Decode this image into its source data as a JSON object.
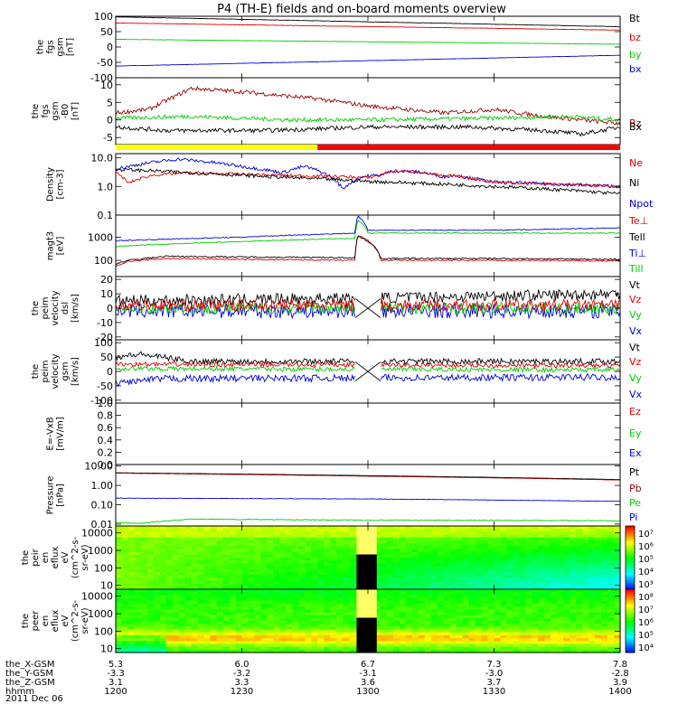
{
  "title": "P4 (TH-E) fields and on-board moments overview",
  "date_label": "2011 Dec 06",
  "colors": {
    "black": "#000000",
    "red": "#e00000",
    "green": "#00cc00",
    "blue": "#0000dd",
    "darkred": "#990000",
    "yellow": "#ffff00"
  },
  "bar_colors": [
    "#ffff00",
    "#ff0000"
  ],
  "chart_data": [
    {
      "type": "line",
      "ylabel": [
        "the",
        "fgs",
        "gsm",
        "[nT]"
      ],
      "ylim": [
        -100,
        100
      ],
      "yticks": [
        {
          "v": 100,
          "t": "100"
        },
        {
          "v": 50,
          "t": "50"
        },
        {
          "v": 0,
          "t": "0"
        },
        {
          "v": -50,
          "t": "-50"
        },
        {
          "v": -100,
          "t": "-100"
        }
      ],
      "legend": [
        "Bt",
        "bz",
        "by",
        "bx"
      ],
      "series": [
        {
          "name": "Bt",
          "color": "#000000",
          "x": [
            12.0,
            14.0
          ],
          "y": [
            98,
            66
          ],
          "noise": 0.5
        },
        {
          "name": "bz",
          "color": "#e00000",
          "x": [
            12.0,
            14.0
          ],
          "y": [
            78,
            55
          ],
          "noise": 0.5
        },
        {
          "name": "by",
          "color": "#00cc00",
          "x": [
            12.0,
            14.0
          ],
          "y": [
            25,
            9
          ],
          "noise": 0.5
        },
        {
          "name": "bx",
          "color": "#0000dd",
          "x": [
            12.0,
            14.0
          ],
          "y": [
            -62,
            -27
          ],
          "noise": 0.5
        }
      ]
    },
    {
      "type": "line",
      "ylabel": [
        "the",
        "fgs",
        "gsm",
        "-B0",
        "[nT]"
      ],
      "ylim": [
        -7,
        12
      ],
      "yticks": [
        {
          "v": 10,
          "t": "10"
        },
        {
          "v": 5,
          "t": "5"
        },
        {
          "v": 0,
          "t": "0"
        },
        {
          "v": -5,
          "t": "-5"
        }
      ],
      "legend": [
        "Bz",
        "Bx"
      ],
      "series": [
        {
          "name": "Bz",
          "color": "#990000",
          "x": [
            12.0,
            12.13,
            12.3,
            12.5,
            12.8,
            13.0,
            13.3,
            13.5,
            13.7,
            13.85,
            14.0
          ],
          "y": [
            2,
            3,
            9,
            8,
            6,
            4,
            2,
            3,
            1,
            0,
            -1
          ],
          "noise": 0.6
        },
        {
          "name": "By",
          "color": "#00cc00",
          "x": [
            12.0,
            12.3,
            12.7,
            13.0,
            13.5,
            13.8,
            14.0
          ],
          "y": [
            0.5,
            1,
            0,
            0,
            0.5,
            1,
            0
          ],
          "noise": 0.6
        },
        {
          "name": "Bx",
          "color": "#000000",
          "x": [
            12.0,
            12.2,
            12.6,
            13.0,
            13.4,
            13.7,
            13.85,
            14.0
          ],
          "y": [
            -2,
            -3,
            -3,
            -2,
            -2,
            -3,
            -4,
            -2
          ],
          "noise": 0.6
        }
      ]
    },
    {
      "type": "line",
      "log": true,
      "ylabel": [
        "Density",
        "[cm-3]"
      ],
      "ylim": [
        0.1,
        14
      ],
      "yticks": [
        {
          "v": 10,
          "t": "10.0"
        },
        {
          "v": 1,
          "t": "1.0"
        },
        {
          "v": 0.1,
          "t": "0.1"
        }
      ],
      "legend": [
        "Ne",
        "Ni",
        "Npot"
      ],
      "series": [
        {
          "name": "Npot",
          "color": "#0000dd",
          "x": [
            12.0,
            12.25,
            12.5,
            12.66,
            12.75,
            12.9,
            12.98,
            13.05,
            13.1,
            13.2,
            13.3,
            13.35,
            13.4,
            13.5,
            14.0
          ],
          "y": [
            4,
            9,
            5,
            3,
            5,
            0.8,
            2.2,
            2.5,
            3.5,
            3.2,
            2.2,
            2.4,
            2,
            1.4,
            1.0
          ],
          "noise": 0.06
        },
        {
          "name": "Ne",
          "color": "#e00000",
          "x": [
            12.0,
            12.05,
            12.15,
            12.3,
            12.6,
            12.9,
            13.0,
            13.05,
            13.1,
            13.2,
            13.3,
            13.35,
            13.4,
            13.5,
            14.0
          ],
          "y": [
            3,
            1.3,
            2.5,
            3,
            2.5,
            2.2,
            2,
            2.5,
            3.5,
            3.2,
            2.2,
            2.4,
            2,
            1.4,
            1.0
          ],
          "noise": 0.05
        },
        {
          "name": "Ni",
          "color": "#000000",
          "x": [
            12.0,
            12.3,
            12.6,
            13.0,
            13.5,
            14.0
          ],
          "y": [
            4,
            3,
            2.2,
            1.5,
            1.0,
            0.55
          ],
          "noise": 0.06
        }
      ]
    },
    {
      "type": "line",
      "log": true,
      "ylabel": [
        "magt3",
        "[eV]"
      ],
      "ylim": [
        20,
        9000
      ],
      "yticks": [
        {
          "v": 1000,
          "t": "1000"
        },
        {
          "v": 100,
          "t": "100"
        }
      ],
      "legend": [
        "Te⊥",
        "Tell",
        "Ti⊥",
        "Till"
      ],
      "series": [
        {
          "name": "Till",
          "color": "#00cc00",
          "x": [
            12.0,
            12.5,
            12.95,
            12.96,
            13.0,
            13.5,
            14.0
          ],
          "y": [
            400,
            650,
            900,
            5500,
            1500,
            1500,
            1500
          ],
          "noise": 0.02
        },
        {
          "name": "Ti⊥",
          "color": "#0000dd",
          "x": [
            12.0,
            12.5,
            12.95,
            12.96,
            13.0,
            13.5,
            14.0
          ],
          "y": [
            700,
            1000,
            1500,
            8000,
            2000,
            2000,
            2500
          ],
          "noise": 0.02
        },
        {
          "name": "Te⊥",
          "color": "#e00000",
          "x": [
            12.0,
            12.05,
            12.2,
            12.5,
            12.95,
            12.96,
            13.05,
            13.5,
            14.0
          ],
          "y": [
            55,
            90,
            120,
            110,
            100,
            1200,
            100,
            100,
            95
          ],
          "noise": 0.03
        },
        {
          "name": "Tell",
          "color": "#000000",
          "x": [
            12.0,
            12.05,
            12.2,
            12.5,
            12.95,
            12.96,
            13.05,
            13.5,
            14.0
          ],
          "y": [
            70,
            100,
            150,
            140,
            130,
            1100,
            120,
            120,
            110
          ],
          "noise": 0.03
        }
      ]
    },
    {
      "type": "line",
      "ylabel": [
        "the",
        "peim",
        "velocity",
        "dsl",
        "[km/s]"
      ],
      "ylim": [
        -22,
        22
      ],
      "yticks": [
        {
          "v": 20,
          "t": "20"
        },
        {
          "v": 10,
          "t": "10"
        },
        {
          "v": 0,
          "t": "0"
        },
        {
          "v": -10,
          "t": "-10"
        },
        {
          "v": -20,
          "t": "-20"
        }
      ],
      "legend": [
        "Vt",
        "Vz",
        "Vy",
        "Vx"
      ],
      "gap": [
        12.95,
        13.05
      ],
      "series": [
        {
          "name": "Vx",
          "color": "#0000dd",
          "x": [
            12.0,
            14.0
          ],
          "y": [
            -2,
            -2
          ],
          "noise": 5
        },
        {
          "name": "Vy",
          "color": "#00cc00",
          "x": [
            12.0,
            14.0
          ],
          "y": [
            0,
            0
          ],
          "noise": 4
        },
        {
          "name": "Vt",
          "color": "#000000",
          "x": [
            12.0,
            13.0,
            14.0
          ],
          "y": [
            5,
            7,
            10
          ],
          "noise": 4
        },
        {
          "name": "Vz",
          "color": "#e00000",
          "x": [
            12.0,
            14.0
          ],
          "y": [
            2,
            2
          ],
          "noise": 4
        }
      ]
    },
    {
      "type": "line",
      "ylabel": [
        "the",
        "peim",
        "velocity",
        "gsm",
        "[km/s]"
      ],
      "ylim": [
        -110,
        110
      ],
      "yticks": [
        {
          "v": 100,
          "t": "100"
        },
        {
          "v": 50,
          "t": "50"
        },
        {
          "v": 0,
          "t": "0"
        },
        {
          "v": -50,
          "t": "-50"
        },
        {
          "v": -100,
          "t": "-100"
        }
      ],
      "legend": [
        "Vt",
        "Vz",
        "Vy",
        "Vx"
      ],
      "gap": [
        12.95,
        13.05
      ],
      "series": [
        {
          "name": "Vx",
          "color": "#0000dd",
          "x": [
            12.0,
            12.2,
            14.0
          ],
          "y": [
            -40,
            -25,
            -20
          ],
          "noise": 12
        },
        {
          "name": "Vt",
          "color": "#000000",
          "x": [
            12.0,
            12.1,
            12.3,
            14.0
          ],
          "y": [
            50,
            60,
            35,
            35
          ],
          "noise": 10
        },
        {
          "name": "Vy",
          "color": "#00cc00",
          "x": [
            12.0,
            14.0
          ],
          "y": [
            10,
            5
          ],
          "noise": 8
        },
        {
          "name": "Vz",
          "color": "#e00000",
          "x": [
            12.0,
            14.0
          ],
          "y": [
            25,
            20
          ],
          "noise": 8
        }
      ]
    },
    {
      "type": "line",
      "ylabel": [
        "E=-VxB",
        "[mV/m]"
      ],
      "ylim": [
        0,
        1
      ],
      "yticks": [
        {
          "v": 1.0,
          "t": "1.0"
        },
        {
          "v": 0.8,
          "t": "0.8"
        },
        {
          "v": 0.6,
          "t": "0.6"
        },
        {
          "v": 0.4,
          "t": "0.4"
        },
        {
          "v": 0.2,
          "t": "0.2"
        },
        {
          "v": 0.0,
          "t": "0.0"
        }
      ],
      "legend": [
        "Ez",
        "Ey",
        "Ex"
      ],
      "series": []
    },
    {
      "type": "line",
      "log": true,
      "ylabel": [
        "Pressure",
        "[nPa]"
      ],
      "ylim": [
        0.008,
        12
      ],
      "yticks": [
        {
          "v": 10,
          "t": "10.00"
        },
        {
          "v": 1,
          "t": "1.00"
        },
        {
          "v": 0.1,
          "t": "0.10"
        },
        {
          "v": 0.01,
          "t": "0.01"
        }
      ],
      "legend": [
        "Pt",
        "Pb",
        "Pe",
        "Pi"
      ],
      "series": [
        {
          "name": "Pt",
          "color": "#000000",
          "x": [
            12.0,
            13.0,
            14.0
          ],
          "y": [
            4.5,
            3.2,
            2.0
          ],
          "noise": 0.003
        },
        {
          "name": "Pb",
          "color": "#990000",
          "x": [
            12.0,
            13.0,
            14.0
          ],
          "y": [
            4.3,
            3.0,
            1.9
          ],
          "noise": 0.003
        },
        {
          "name": "Pi",
          "color": "#0000dd",
          "x": [
            12.0,
            13.0,
            14.0
          ],
          "y": [
            0.22,
            0.2,
            0.15
          ],
          "noise": 0.01
        },
        {
          "name": "Pe",
          "color": "#00cc00",
          "x": [
            12.0,
            12.1,
            12.3,
            13.0,
            14.0
          ],
          "y": [
            0.012,
            0.011,
            0.018,
            0.016,
            0.015
          ],
          "noise": 0.02
        }
      ]
    },
    {
      "type": "heatmap",
      "ylabel": [
        "the",
        "peir",
        "en",
        "eflux",
        "eV",
        "(cm^2-s-",
        "sr-eV)"
      ],
      "ylim": [
        6,
        25000
      ],
      "log": true,
      "yticks": [
        {
          "v": 10000,
          "t": "10000"
        },
        {
          "v": 1000,
          "t": "1000"
        },
        {
          "v": 100,
          "t": "100"
        },
        {
          "v": 10,
          "t": "10"
        }
      ],
      "cbar_ticks": [
        "10⁷",
        "10⁶",
        "10⁵",
        "10⁴",
        "10³"
      ]
    },
    {
      "type": "heatmap",
      "ylabel": [
        "the",
        "peer",
        "en",
        "eflux",
        "eV",
        "(cm^2-s-",
        "sr-eV)"
      ],
      "ylim": [
        6,
        25000
      ],
      "log": true,
      "yticks": [
        {
          "v": 10000,
          "t": "10000"
        },
        {
          "v": 1000,
          "t": "1000"
        },
        {
          "v": 100,
          "t": "100"
        },
        {
          "v": 10,
          "t": "10"
        }
      ],
      "cbar_ticks": [
        "10⁸",
        "10⁷",
        "10⁶",
        "10⁵",
        "10⁴"
      ]
    }
  ],
  "xaxis": {
    "xlim": [
      12.0,
      14.0
    ],
    "ticks": [
      12.0,
      12.5,
      13.0,
      13.5,
      14.0
    ],
    "rows": [
      {
        "label": "the_X-GSM",
        "values": [
          "5.3",
          "6.0",
          "6.7",
          "7.3",
          "7.8"
        ]
      },
      {
        "label": "the_Y-GSM",
        "values": [
          "-3.3",
          "-3.2",
          "-3.1",
          "-3.0",
          "-2.8"
        ]
      },
      {
        "label": "the_Z-GSM",
        "values": [
          "3.1",
          "3.3",
          "3.6",
          "3.7",
          "3.9"
        ]
      },
      {
        "label": "hhmm",
        "values": [
          "1200",
          "1230",
          "1300",
          "1330",
          "1400"
        ]
      }
    ]
  }
}
